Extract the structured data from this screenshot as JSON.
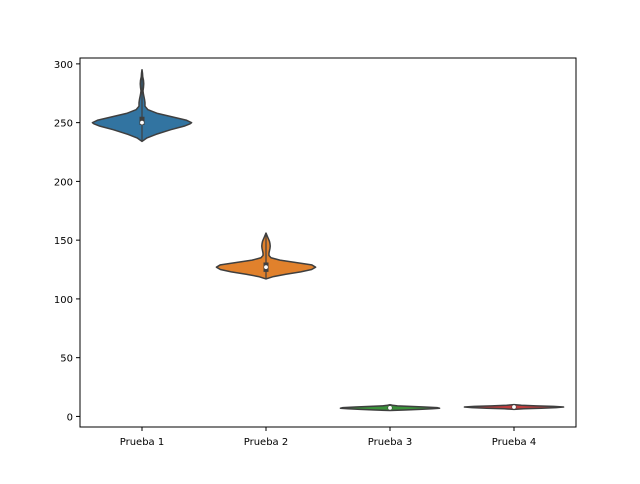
{
  "chart_data": {
    "type": "violin",
    "title": "",
    "xlabel": "",
    "ylabel": "",
    "categories": [
      "Prueba 1",
      "Prueba 2",
      "Prueba 3",
      "Prueba 4"
    ],
    "colors": [
      "#3274a1",
      "#e1812c",
      "#3a923a",
      "#c03d3e"
    ],
    "ylim": [
      -9,
      305
    ],
    "yticks": [
      0,
      50,
      100,
      150,
      200,
      250,
      300
    ],
    "grid": false,
    "legend": "none",
    "violins": [
      {
        "name": "Prueba 1",
        "min": 234,
        "max": 295,
        "q1": 248,
        "median": 250,
        "q3": 255,
        "profile": [
          [
            234,
            0.0
          ],
          [
            237,
            0.1
          ],
          [
            240,
            0.28
          ],
          [
            244,
            0.58
          ],
          [
            247,
            0.85
          ],
          [
            249,
            0.97
          ],
          [
            250,
            1.0
          ],
          [
            252,
            0.9
          ],
          [
            255,
            0.6
          ],
          [
            258,
            0.3
          ],
          [
            261,
            0.12
          ],
          [
            264,
            0.06
          ],
          [
            267,
            0.06
          ],
          [
            270,
            0.05
          ],
          [
            274,
            0.03
          ],
          [
            277,
            0.02
          ],
          [
            280,
            0.03
          ],
          [
            283,
            0.035
          ],
          [
            286,
            0.03
          ],
          [
            289,
            0.015
          ],
          [
            292,
            0.01
          ],
          [
            295,
            0.0
          ]
        ]
      },
      {
        "name": "Prueba 2",
        "min": 117,
        "max": 156,
        "q1": 123,
        "median": 127,
        "q3": 131,
        "profile": [
          [
            117,
            0.0
          ],
          [
            119,
            0.15
          ],
          [
            121,
            0.4
          ],
          [
            123,
            0.7
          ],
          [
            125,
            0.92
          ],
          [
            127,
            1.0
          ],
          [
            129,
            0.92
          ],
          [
            131,
            0.6
          ],
          [
            133,
            0.28
          ],
          [
            135,
            0.1
          ],
          [
            137,
            0.06
          ],
          [
            139,
            0.06
          ],
          [
            141,
            0.07
          ],
          [
            143,
            0.08
          ],
          [
            145,
            0.085
          ],
          [
            147,
            0.08
          ],
          [
            149,
            0.07
          ],
          [
            151,
            0.05
          ],
          [
            153,
            0.03
          ],
          [
            155,
            0.01
          ],
          [
            156,
            0.0
          ]
        ]
      },
      {
        "name": "Prueba 3",
        "min": 5,
        "max": 10,
        "q1": 6.5,
        "median": 7.3,
        "q3": 8.2,
        "profile": [
          [
            5,
            0.0
          ],
          [
            5.5,
            0.3
          ],
          [
            6,
            0.6
          ],
          [
            6.5,
            0.85
          ],
          [
            7,
            1.0
          ],
          [
            7.5,
            0.95
          ],
          [
            8,
            0.7
          ],
          [
            8.5,
            0.4
          ],
          [
            9,
            0.15
          ],
          [
            9.5,
            0.05
          ],
          [
            10,
            0.0
          ]
        ]
      },
      {
        "name": "Prueba 4",
        "min": 6,
        "max": 10,
        "q1": 7.5,
        "median": 8,
        "q3": 8.5,
        "profile": [
          [
            6,
            0.0
          ],
          [
            6.5,
            0.2
          ],
          [
            7,
            0.55
          ],
          [
            7.5,
            0.85
          ],
          [
            8,
            1.0
          ],
          [
            8.5,
            0.8
          ],
          [
            9,
            0.45
          ],
          [
            9.5,
            0.15
          ],
          [
            10,
            0.0
          ]
        ]
      }
    ]
  }
}
